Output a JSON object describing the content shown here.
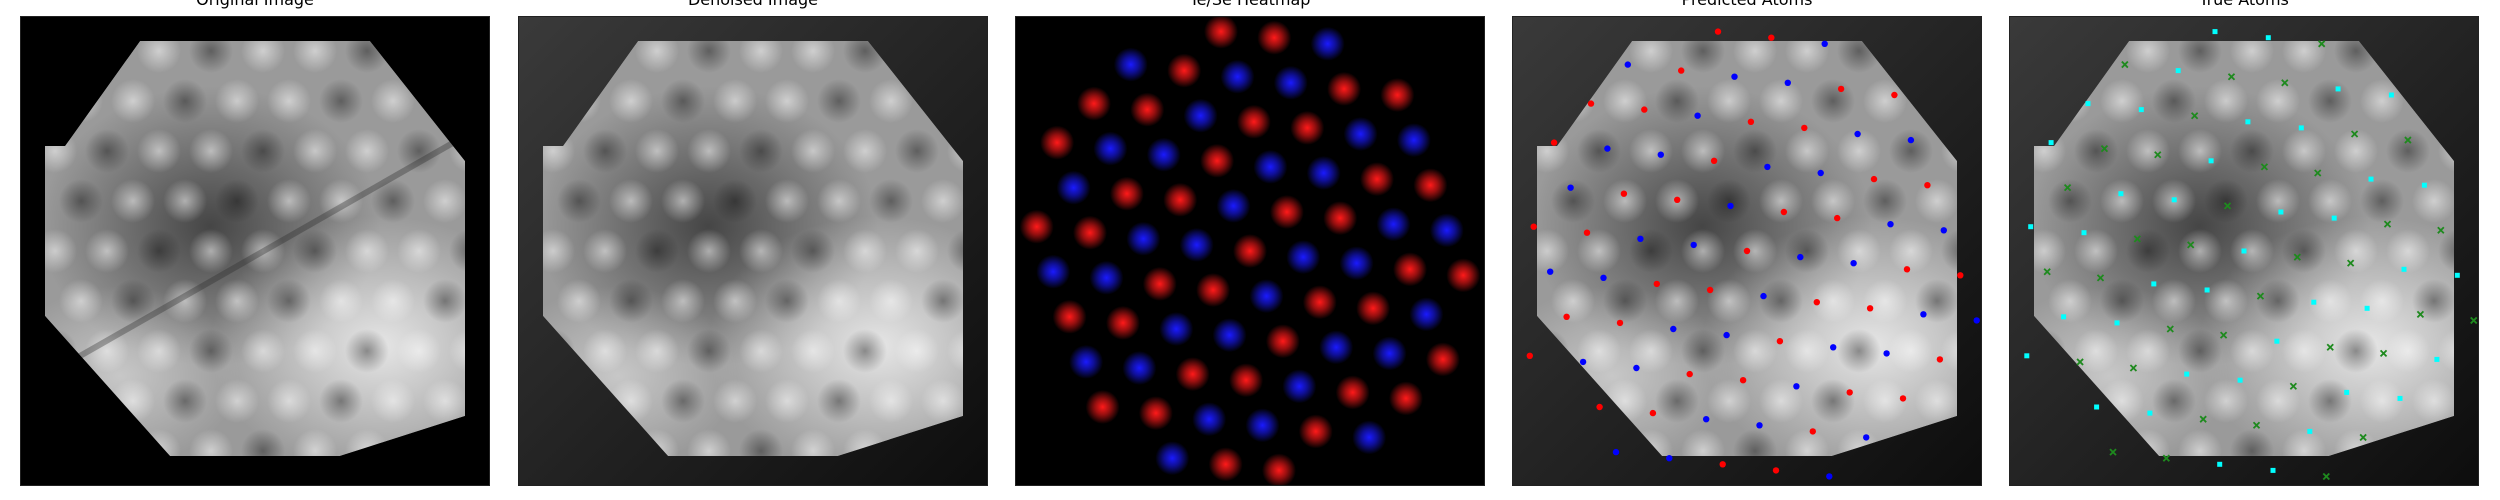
{
  "panels": [
    {
      "title": "Original Image",
      "style": "original"
    },
    {
      "title": "Denoised Image",
      "style": "denoised"
    },
    {
      "title": "Te/Se Heatmap",
      "style": "heatmap"
    },
    {
      "title": "Predicted Atoms",
      "style": "predicted"
    },
    {
      "title": "True Atoms",
      "style": "true"
    }
  ],
  "colors": {
    "te_red": "#ff1a1a",
    "se_blue": "#1a1aff",
    "pred_red": "#ff0000",
    "pred_blue": "#0000ff",
    "true_cyan": "#00ffff",
    "true_green": "#1e8a1e"
  }
}
